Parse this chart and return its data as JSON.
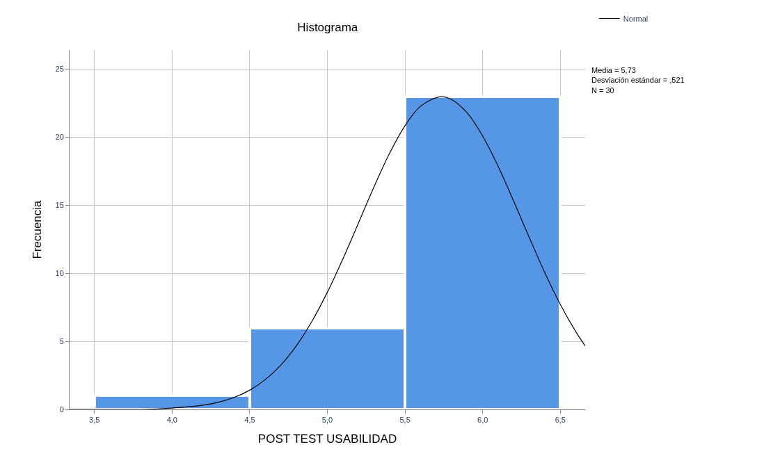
{
  "chart_data": {
    "type": "histogram",
    "title": "Histograma",
    "xlabel": "POST TEST USABILIDAD",
    "ylabel": "Frecuencia",
    "bins": [
      3.5,
      4.5,
      5.5,
      6.5
    ],
    "values": [
      1,
      6,
      23
    ],
    "color": "#5596e6",
    "series": [
      {
        "name": "Normal",
        "type": "line",
        "color": "#000000",
        "x": [
          3.34,
          3.4,
          3.6,
          3.8,
          4.0,
          4.2,
          4.3,
          4.4,
          4.5,
          4.6,
          4.7,
          4.8,
          4.9,
          5.0,
          5.1,
          5.2,
          5.3,
          5.4,
          5.5,
          5.6,
          5.73,
          5.8,
          5.9,
          6.0,
          6.1,
          6.2,
          6.3,
          6.4,
          6.5,
          6.6,
          6.66
        ],
        "values": [
          0,
          0,
          0,
          0,
          0.1,
          0.31,
          0.53,
          0.88,
          1.41,
          2.19,
          3.25,
          4.67,
          6.46,
          8.61,
          11.06,
          13.69,
          16.34,
          18.8,
          20.84,
          22.27,
          22.97,
          22.76,
          21.78,
          20.08,
          17.85,
          15.29,
          12.63,
          10.05,
          7.71,
          5.7,
          4.67
        ]
      }
    ],
    "xlim": [
      3.34,
      6.66
    ],
    "xticks": [
      {
        "value": 3.5,
        "label": "3,5"
      },
      {
        "value": 4.0,
        "label": "4,0"
      },
      {
        "value": 4.5,
        "label": "4,5"
      },
      {
        "value": 5.0,
        "label": "5,0"
      },
      {
        "value": 5.5,
        "label": "5,5"
      },
      {
        "value": 6.0,
        "label": "6,0"
      },
      {
        "value": 6.5,
        "label": "6,5"
      }
    ],
    "ylim": [
      0,
      26.4
    ],
    "yticks": [
      0,
      5,
      10,
      15,
      20,
      25
    ],
    "grid": true,
    "legend": "top right",
    "line_style": "solid",
    "annotations": [
      "Media = 5,73\nDesviación estándar = ,521\nN = 30"
    ]
  }
}
